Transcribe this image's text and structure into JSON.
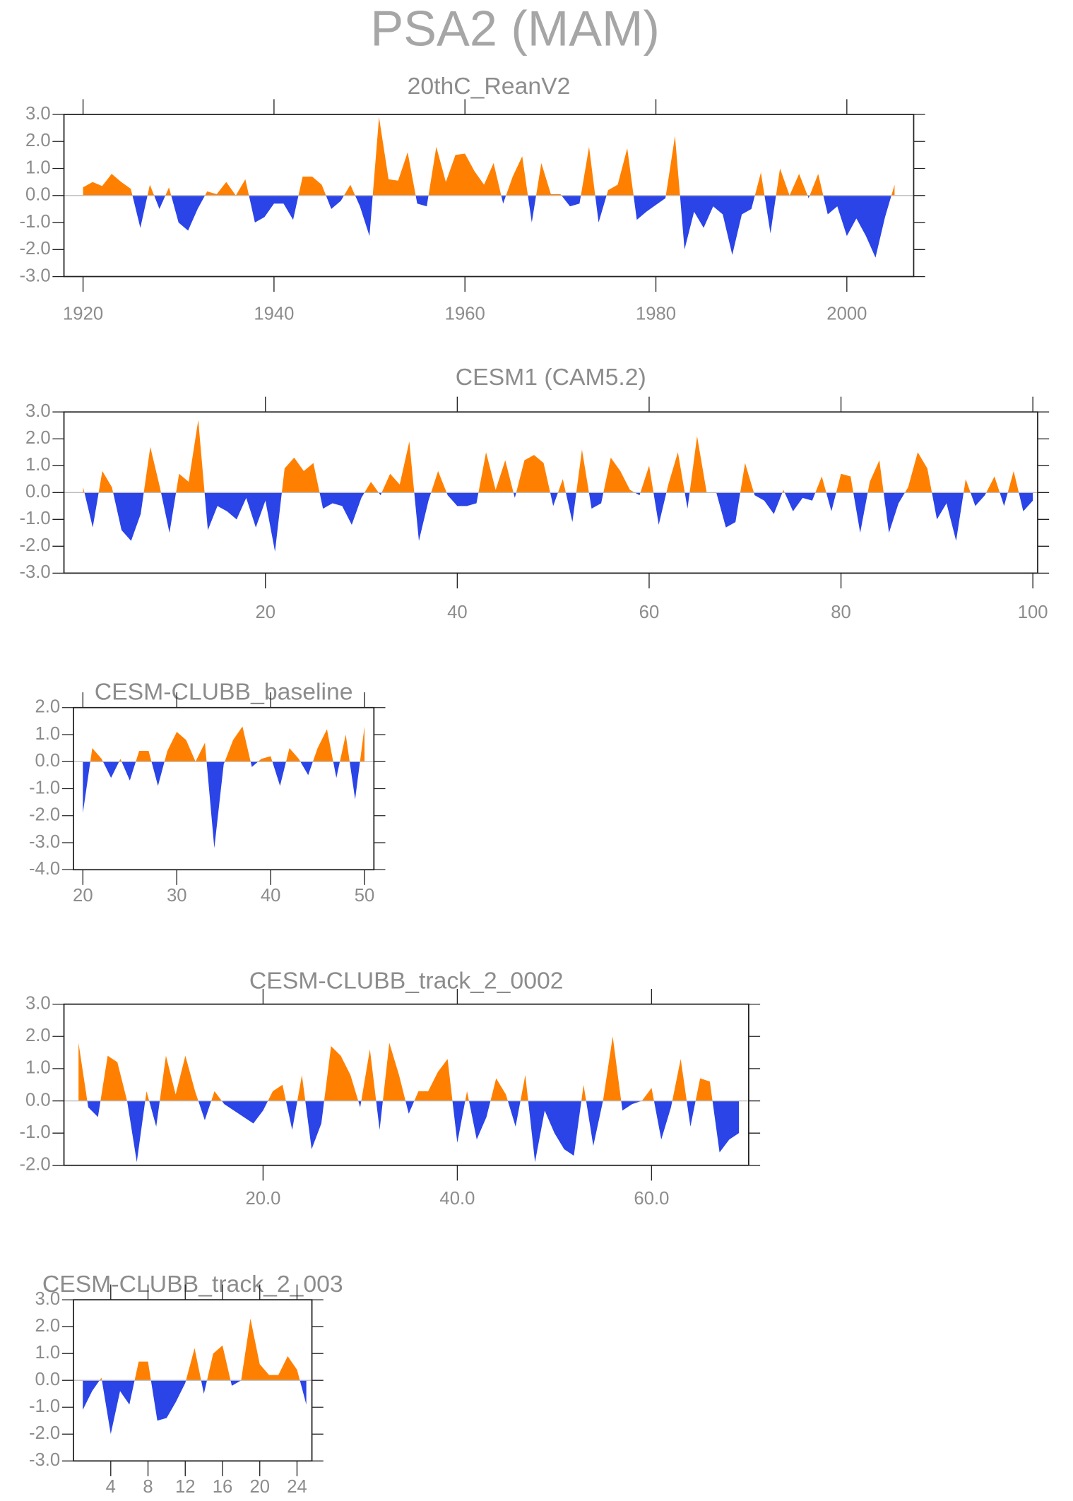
{
  "title": "PSA2 (MAM)",
  "chart_data": [
    {
      "type": "area",
      "title": "20thC_ReanV2",
      "pos_color": "#ff8000",
      "neg_color": "#2a44e8",
      "x": [
        1920,
        1921,
        1922,
        1923,
        1924,
        1925,
        1926,
        1927,
        1928,
        1929,
        1930,
        1931,
        1932,
        1933,
        1934,
        1935,
        1936,
        1937,
        1938,
        1939,
        1940,
        1941,
        1942,
        1943,
        1944,
        1945,
        1946,
        1947,
        1948,
        1949,
        1950,
        1951,
        1952,
        1953,
        1954,
        1955,
        1956,
        1957,
        1958,
        1959,
        1960,
        1961,
        1962,
        1963,
        1964,
        1965,
        1966,
        1967,
        1968,
        1969,
        1970,
        1971,
        1972,
        1973,
        1974,
        1975,
        1976,
        1977,
        1978,
        1979,
        1980,
        1981,
        1982,
        1983,
        1984,
        1985,
        1986,
        1987,
        1988,
        1989,
        1990,
        1991,
        1992,
        1993,
        1994,
        1995,
        1996,
        1997,
        1998,
        1999,
        2000,
        2001,
        2002,
        2003,
        2004,
        2005
      ],
      "values": [
        0.3,
        0.5,
        0.35,
        0.8,
        0.5,
        0.25,
        -1.2,
        0.4,
        -0.5,
        0.3,
        -1.0,
        -1.3,
        -0.5,
        0.15,
        0.05,
        0.5,
        0.0,
        0.6,
        -1.0,
        -0.8,
        -0.3,
        -0.3,
        -0.9,
        0.7,
        0.7,
        0.4,
        -0.5,
        -0.2,
        0.4,
        -0.4,
        -1.5,
        2.9,
        0.6,
        0.55,
        1.6,
        -0.3,
        -0.4,
        1.8,
        0.5,
        1.5,
        1.55,
        0.9,
        0.4,
        1.2,
        -0.3,
        0.7,
        1.45,
        -1.0,
        1.2,
        0.05,
        0.05,
        -0.4,
        -0.3,
        1.8,
        -1.0,
        0.2,
        0.4,
        1.75,
        -0.9,
        -0.6,
        -0.35,
        -0.1,
        2.2,
        -2.0,
        -0.6,
        -1.2,
        -0.4,
        -0.7,
        -2.2,
        -0.7,
        -0.5,
        0.85,
        -1.4,
        1.0,
        0.0,
        0.8,
        -0.1,
        0.8,
        -0.7,
        -0.4,
        -1.5,
        -0.85,
        -1.5,
        -2.3,
        -0.8,
        0.4
      ],
      "xlim": [
        1918,
        2007
      ],
      "xticks": [
        1920,
        1940,
        1960,
        1980,
        2000
      ],
      "ylim": [
        -3,
        3
      ],
      "yticks": [
        {
          "value": -3,
          "label": "-3.0"
        },
        {
          "value": -2,
          "label": "-2.0"
        },
        {
          "value": -1,
          "label": "-1.0"
        },
        {
          "value": 0,
          "label": "0.0"
        },
        {
          "value": 1,
          "label": "1.0"
        },
        {
          "value": 2,
          "label": "2.0"
        },
        {
          "value": 3,
          "label": "3.0"
        }
      ]
    },
    {
      "type": "area",
      "title": "CESM1 (CAM5.2)",
      "pos_color": "#ff8000",
      "neg_color": "#2a44e8",
      "x": [
        1,
        2,
        3,
        4,
        5,
        6,
        7,
        8,
        9,
        10,
        11,
        12,
        13,
        14,
        15,
        16,
        17,
        18,
        19,
        20,
        21,
        22,
        23,
        24,
        25,
        26,
        27,
        28,
        29,
        30,
        31,
        32,
        33,
        34,
        35,
        36,
        37,
        38,
        39,
        40,
        41,
        42,
        43,
        44,
        45,
        46,
        47,
        48,
        49,
        50,
        51,
        52,
        53,
        54,
        55,
        56,
        57,
        58,
        59,
        60,
        61,
        62,
        63,
        64,
        65,
        66,
        67,
        68,
        69,
        70,
        71,
        72,
        73,
        74,
        75,
        76,
        77,
        78,
        79,
        80,
        81,
        82,
        83,
        84,
        85,
        86,
        87,
        88,
        89,
        90,
        91,
        92,
        93,
        94,
        95,
        96,
        97,
        98,
        99,
        100
      ],
      "values": [
        0.2,
        -1.3,
        0.8,
        0.2,
        -1.4,
        -1.8,
        -0.8,
        1.7,
        0.2,
        -1.5,
        0.7,
        0.4,
        2.7,
        -1.4,
        -0.5,
        -0.7,
        -1.0,
        -0.2,
        -1.3,
        -0.3,
        -2.2,
        0.9,
        1.3,
        0.8,
        1.1,
        -0.6,
        -0.4,
        -0.5,
        -1.2,
        -0.2,
        0.4,
        -0.1,
        0.7,
        0.3,
        1.9,
        -1.8,
        -0.3,
        0.8,
        -0.1,
        -0.5,
        -0.5,
        -0.4,
        1.5,
        0.1,
        1.2,
        -0.2,
        1.2,
        1.4,
        1.1,
        -0.5,
        0.5,
        -1.1,
        1.6,
        -0.6,
        -0.4,
        1.3,
        0.8,
        0.1,
        -0.1,
        1.0,
        -1.2,
        0.3,
        1.5,
        -0.6,
        2.1,
        0.0,
        0.0,
        -1.3,
        -1.1,
        1.1,
        -0.1,
        -0.3,
        -0.8,
        0.1,
        -0.7,
        -0.2,
        -0.3,
        0.6,
        -0.7,
        0.7,
        0.6,
        -1.5,
        0.4,
        1.2,
        -1.5,
        -0.4,
        0.2,
        1.5,
        0.9,
        -1.0,
        -0.4,
        -1.8,
        0.5,
        -0.5,
        -0.1,
        0.6,
        -0.5,
        0.8,
        -0.7,
        -0.3
      ],
      "xlim": [
        -1,
        100.5
      ],
      "xticks": [
        20,
        40,
        60,
        80,
        100
      ],
      "ylim": [
        -3,
        3
      ],
      "yticks": [
        {
          "value": -3,
          "label": "-3.0"
        },
        {
          "value": -2,
          "label": "-2.0"
        },
        {
          "value": -1,
          "label": "-1.0"
        },
        {
          "value": 0,
          "label": "0.0"
        },
        {
          "value": 1,
          "label": "1.0"
        },
        {
          "value": 2,
          "label": "2.0"
        },
        {
          "value": 3,
          "label": "3.0"
        }
      ]
    },
    {
      "type": "area",
      "title": "CESM-CLUBB_baseline",
      "pos_color": "#ff8000",
      "neg_color": "#2a44e8",
      "x": [
        20,
        21,
        22,
        23,
        24,
        25,
        26,
        27,
        28,
        29,
        30,
        31,
        32,
        33,
        34,
        35,
        36,
        37,
        38,
        39,
        40,
        41,
        42,
        43,
        44,
        45,
        46,
        47,
        48,
        49,
        50
      ],
      "values": [
        -1.9,
        0.5,
        0.1,
        -0.6,
        0.1,
        -0.7,
        0.4,
        0.4,
        -0.9,
        0.4,
        1.1,
        0.8,
        0.0,
        0.7,
        -3.2,
        -0.1,
        0.8,
        1.3,
        -0.2,
        0.1,
        0.2,
        -0.9,
        0.5,
        0.1,
        -0.5,
        0.5,
        1.2,
        -0.6,
        1.0,
        -1.4,
        1.3
      ],
      "xlim": [
        19,
        51
      ],
      "xticks": [
        20,
        30,
        40,
        50
      ],
      "ylim": [
        -4,
        2
      ],
      "yticks": [
        {
          "value": -4,
          "label": "-4.0"
        },
        {
          "value": -3,
          "label": "-3.0"
        },
        {
          "value": -2,
          "label": "-2.0"
        },
        {
          "value": -1,
          "label": "-1.0"
        },
        {
          "value": 0,
          "label": "0.0"
        },
        {
          "value": 1,
          "label": "1.0"
        },
        {
          "value": 2,
          "label": "2.0"
        }
      ]
    },
    {
      "type": "area",
      "title": "CESM-CLUBB_track_2_0002",
      "pos_color": "#ff8000",
      "neg_color": "#2a44e8",
      "x": [
        1,
        2,
        3,
        4,
        5,
        6,
        7,
        8,
        9,
        10,
        11,
        12,
        13,
        14,
        15,
        16,
        17,
        18,
        19,
        20,
        21,
        22,
        23,
        24,
        25,
        26,
        27,
        28,
        29,
        30,
        31,
        32,
        33,
        34,
        35,
        36,
        37,
        38,
        39,
        40,
        41,
        42,
        43,
        44,
        45,
        46,
        47,
        48,
        49,
        50,
        51,
        52,
        53,
        54,
        55,
        56,
        57,
        58,
        59,
        60,
        61,
        62,
        63,
        64,
        65,
        66,
        67,
        68,
        69
      ],
      "values": [
        1.8,
        -0.2,
        -0.5,
        1.4,
        1.2,
        0.0,
        -1.9,
        0.3,
        -0.8,
        1.4,
        0.2,
        1.4,
        0.3,
        -0.6,
        0.3,
        -0.1,
        -0.3,
        -0.5,
        -0.7,
        -0.3,
        0.3,
        0.5,
        -0.9,
        0.8,
        -1.5,
        -0.7,
        1.7,
        1.4,
        0.8,
        -0.2,
        1.6,
        -0.9,
        1.8,
        0.8,
        -0.4,
        0.3,
        0.3,
        0.9,
        1.3,
        -1.3,
        0.3,
        -1.2,
        -0.5,
        0.7,
        0.2,
        -0.8,
        0.8,
        -1.9,
        -0.3,
        -1.0,
        -1.5,
        -1.7,
        0.5,
        -1.4,
        0.0,
        2.0,
        -0.3,
        -0.1,
        0.0,
        0.4,
        -1.2,
        -0.2,
        1.3,
        -0.8,
        0.7,
        0.6,
        -1.6,
        -1.2,
        -1.0
      ],
      "xlim": [
        -0.5,
        70
      ],
      "xticks": [
        {
          "value": 20,
          "label": "20.0"
        },
        {
          "value": 40,
          "label": "40.0"
        },
        {
          "value": 60,
          "label": "60.0"
        }
      ],
      "ylim": [
        -2,
        3
      ],
      "yticks": [
        {
          "value": -2,
          "label": "-2.0"
        },
        {
          "value": -1,
          "label": "-1.0"
        },
        {
          "value": 0,
          "label": "0.0"
        },
        {
          "value": 1,
          "label": "1.0"
        },
        {
          "value": 2,
          "label": "2.0"
        },
        {
          "value": 3,
          "label": "3.0"
        }
      ]
    },
    {
      "type": "area",
      "title": "CESM-CLUBB_track_2_003",
      "pos_color": "#ff8000",
      "neg_color": "#2a44e8",
      "x": [
        1,
        2,
        3,
        4,
        5,
        6,
        7,
        8,
        9,
        10,
        11,
        12,
        13,
        14,
        15,
        16,
        17,
        18,
        19,
        20,
        21,
        22,
        23,
        24,
        25
      ],
      "values": [
        -1.1,
        -0.4,
        0.1,
        -2.0,
        -0.4,
        -0.9,
        0.7,
        0.7,
        -1.5,
        -1.4,
        -0.8,
        -0.1,
        1.2,
        -0.5,
        1.0,
        1.3,
        -0.2,
        0.0,
        2.3,
        0.6,
        0.2,
        0.2,
        0.9,
        0.4,
        -0.9
      ],
      "xlim": [
        0,
        25.6
      ],
      "xticks": [
        4,
        8,
        12,
        16,
        20,
        24
      ],
      "ylim": [
        -3,
        3
      ],
      "yticks": [
        {
          "value": -3,
          "label": "-3.0"
        },
        {
          "value": -2,
          "label": "-2.0"
        },
        {
          "value": -1,
          "label": "-1.0"
        },
        {
          "value": 0,
          "label": "0.0"
        },
        {
          "value": 1,
          "label": "1.0"
        },
        {
          "value": 2,
          "label": "2.0"
        },
        {
          "value": 3,
          "label": "3.0"
        }
      ]
    }
  ]
}
